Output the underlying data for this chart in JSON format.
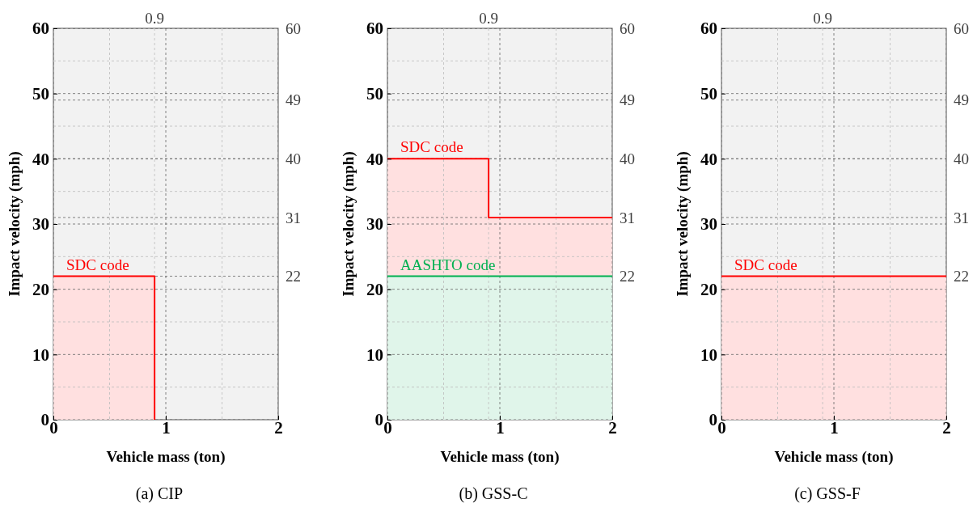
{
  "chart_data": [
    {
      "type": "area",
      "title": "(a) CIP",
      "xlabel": "Vehicle mass (ton)",
      "ylabel": "Impact velocity (mph)",
      "xlim": [
        0,
        2
      ],
      "xticks": [
        0,
        1,
        2
      ],
      "ylim": [
        0,
        60
      ],
      "yticks": [
        0,
        10,
        20,
        30,
        40,
        50,
        60
      ],
      "y2lim": [
        0,
        60
      ],
      "y2ticks": [
        22,
        31,
        40,
        49,
        60
      ],
      "grid": true,
      "legend": false,
      "ref_lines": [
        {
          "axis": "x",
          "value": 0.9,
          "label": "0.9"
        }
      ],
      "series": [
        {
          "name": "SDC code",
          "color": "#ff0000",
          "x": [
            0,
            0.9,
            0.9
          ],
          "values": [
            22,
            22,
            0
          ]
        }
      ]
    },
    {
      "type": "area",
      "title": "(b) GSS-C",
      "xlabel": "Vehicle mass (ton)",
      "ylabel": "Impact velocity (mph)",
      "xlim": [
        0,
        2
      ],
      "xticks": [
        0,
        1,
        2
      ],
      "ylim": [
        0,
        60
      ],
      "yticks": [
        0,
        10,
        20,
        30,
        40,
        50,
        60
      ],
      "y2lim": [
        0,
        60
      ],
      "y2ticks": [
        22,
        31,
        40,
        49,
        60
      ],
      "grid": true,
      "legend": false,
      "ref_lines": [
        {
          "axis": "x",
          "value": 0.9,
          "label": "0.9"
        }
      ],
      "series": [
        {
          "name": "SDC code",
          "color": "#ff0000",
          "x": [
            0,
            0.9,
            0.9,
            2
          ],
          "values": [
            40,
            40,
            31,
            31
          ]
        },
        {
          "name": "AASHTO code",
          "color": "#00b050",
          "x": [
            0,
            2
          ],
          "values": [
            22,
            22
          ]
        }
      ]
    },
    {
      "type": "area",
      "title": "(c) GSS-F",
      "xlabel": "Vehicle mass (ton)",
      "ylabel": "Impact velocity (mph)",
      "xlim": [
        0,
        2
      ],
      "xticks": [
        0,
        1,
        2
      ],
      "ylim": [
        0,
        60
      ],
      "yticks": [
        0,
        10,
        20,
        30,
        40,
        50,
        60
      ],
      "y2lim": [
        0,
        60
      ],
      "y2ticks": [
        22,
        31,
        40,
        49,
        60
      ],
      "grid": true,
      "legend": false,
      "ref_lines": [
        {
          "axis": "x",
          "value": 0.9,
          "label": "0.9"
        }
      ],
      "series": [
        {
          "name": "SDC code",
          "color": "#ff0000",
          "x": [
            0,
            2
          ],
          "values": [
            22,
            22
          ]
        }
      ]
    }
  ]
}
